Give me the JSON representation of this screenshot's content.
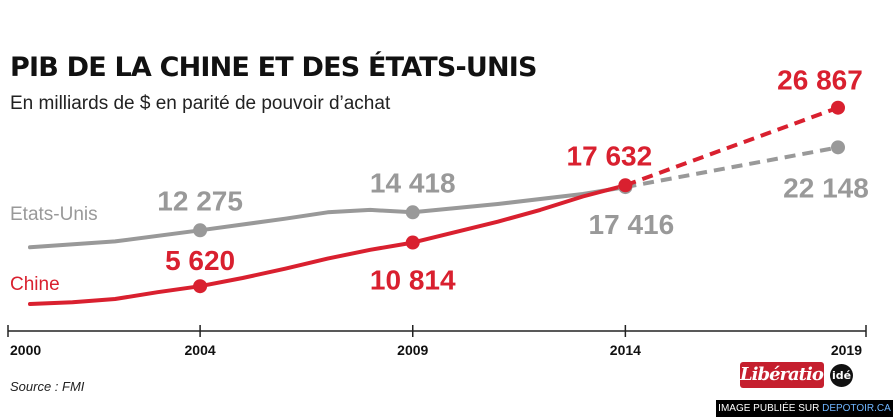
{
  "header": {
    "title": "PIB DE LA CHINE ET DES ÉTATS-UNIS",
    "subtitle": "En milliards de $ en parité de pouvoir d’achat"
  },
  "footer": {
    "source": "Source : FMI",
    "logo_text": "Libération",
    "badge_text": "idé",
    "credit_prefix": "IMAGE PUBLIÉE SUR ",
    "credit_link": "DEPOTOIR.CA"
  },
  "colors": {
    "us": "#999999",
    "china": "#d9202f",
    "axis": "#222222"
  },
  "chart_data": {
    "type": "line",
    "title": "PIB DE LA CHINE ET DES ÉTATS-UNIS",
    "subtitle": "En milliards de $ en parité de pouvoir d’achat",
    "xlabel": "",
    "ylabel": "",
    "x_ticks": [
      "2000",
      "2004",
      "2009",
      "2014",
      "2019"
    ],
    "xlim": [
      2000,
      2019
    ],
    "grid": false,
    "series": [
      {
        "name": "Etats-Unis",
        "color": "#999999",
        "line": [
          [
            2000,
            10250
          ],
          [
            2002,
            10950
          ],
          [
            2004,
            12275
          ],
          [
            2006,
            13650
          ],
          [
            2007,
            14420
          ],
          [
            2008,
            14700
          ],
          [
            2009,
            14418
          ],
          [
            2011,
            15400
          ],
          [
            2013,
            16600
          ],
          [
            2014,
            17416
          ]
        ],
        "projection": [
          [
            2014,
            17416
          ],
          [
            2019,
            22148
          ]
        ],
        "points": [
          {
            "x": 2004,
            "y": 12275,
            "label": "12 275"
          },
          {
            "x": 2009,
            "y": 14418,
            "label": "14 418"
          },
          {
            "x": 2014,
            "y": 17416,
            "label": "17 416"
          },
          {
            "x": 2019,
            "y": 22148,
            "label": "22 148"
          }
        ]
      },
      {
        "name": "Chine",
        "color": "#d9202f",
        "line": [
          [
            2000,
            3500
          ],
          [
            2001,
            3700
          ],
          [
            2002,
            4100
          ],
          [
            2003,
            4900
          ],
          [
            2004,
            5620
          ],
          [
            2005,
            6600
          ],
          [
            2006,
            7700
          ],
          [
            2007,
            8900
          ],
          [
            2008,
            9950
          ],
          [
            2009,
            10814
          ],
          [
            2011,
            13300
          ],
          [
            2012,
            14700
          ],
          [
            2013,
            16300
          ],
          [
            2014,
            17632
          ]
        ],
        "projection": [
          [
            2014,
            17632
          ],
          [
            2019,
            26867
          ]
        ],
        "points": [
          {
            "x": 2004,
            "y": 5620,
            "label": "5 620"
          },
          {
            "x": 2009,
            "y": 10814,
            "label": "10 814"
          },
          {
            "x": 2014,
            "y": 17632,
            "label": "17 632"
          },
          {
            "x": 2019,
            "y": 26867,
            "label": "26 867"
          }
        ]
      }
    ]
  }
}
